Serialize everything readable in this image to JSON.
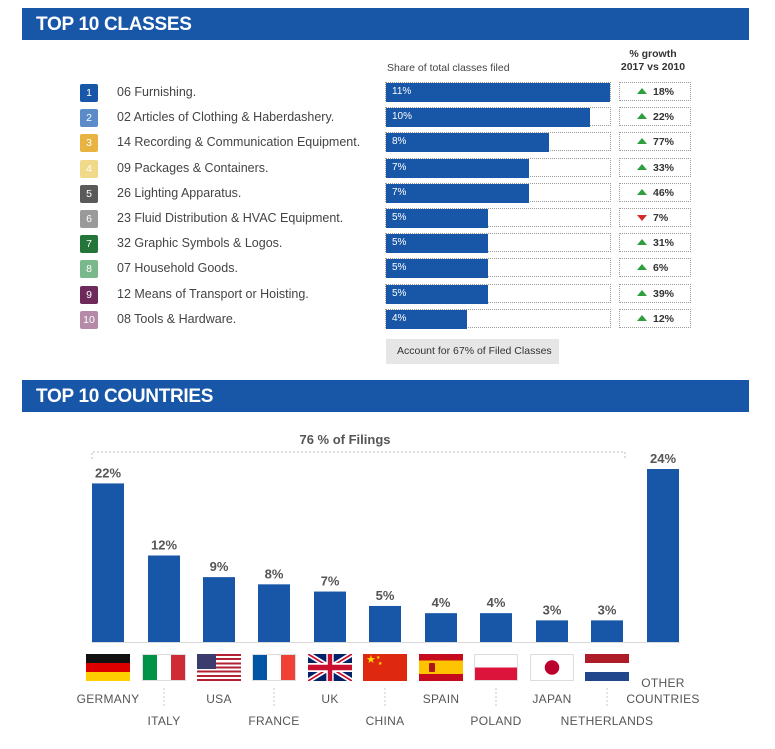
{
  "classes_section": {
    "title": "TOP 10 CLASSES",
    "share_header": "Share of total classes filed",
    "growth_header_line1": "% growth",
    "growth_header_line2": "2017 vs 2010",
    "note": "Account for 67% of Filed Classes",
    "rows": [
      {
        "num": "1",
        "name": "06 Furnishing.",
        "share": 11,
        "share_label": "11%",
        "growth": "18%",
        "direction": "up",
        "badge_color": "#1856a8"
      },
      {
        "num": "2",
        "name": "02 Articles of Clothing & Haberdashery.",
        "share": 10,
        "share_label": "10%",
        "growth": "22%",
        "direction": "up",
        "badge_color": "#5b8cc9"
      },
      {
        "num": "3",
        "name": "14 Recording & Communication Equipment.",
        "share": 8,
        "share_label": "8%",
        "growth": "77%",
        "direction": "up",
        "badge_color": "#e8b341"
      },
      {
        "num": "4",
        "name": "09 Packages & Containers.",
        "share": 7,
        "share_label": "7%",
        "growth": "33%",
        "direction": "up",
        "badge_color": "#f1d98a"
      },
      {
        "num": "5",
        "name": "26 Lighting Apparatus.",
        "share": 7,
        "share_label": "7%",
        "growth": "46%",
        "direction": "up",
        "badge_color": "#5a5a5a"
      },
      {
        "num": "6",
        "name": "23 Fluid Distribution & HVAC Equipment.",
        "share": 5,
        "share_label": "5%",
        "growth": "7%",
        "direction": "down",
        "badge_color": "#9a9a9a"
      },
      {
        "num": "7",
        "name": "32 Graphic Symbols & Logos.",
        "share": 5,
        "share_label": "5%",
        "growth": "31%",
        "direction": "up",
        "badge_color": "#23753a"
      },
      {
        "num": "8",
        "name": "07 Household Goods.",
        "share": 5,
        "share_label": "5%",
        "growth": "6%",
        "direction": "up",
        "badge_color": "#79b88a"
      },
      {
        "num": "9",
        "name": "12 Means of Transport or Hoisting.",
        "share": 5,
        "share_label": "5%",
        "growth": "39%",
        "direction": "up",
        "badge_color": "#6e2a5a"
      },
      {
        "num": "10",
        "name": "08 Tools & Hardware.",
        "share": 4,
        "share_label": "4%",
        "growth": "12%",
        "direction": "up",
        "badge_color": "#b58aa9"
      }
    ]
  },
  "countries_section": {
    "title": "TOP 10 COUNTRIES",
    "bracket_label": "76 % of Filings"
  },
  "colors": {
    "brand_blue": "#1856a8",
    "up_arrow": "#2e9e3f",
    "down_arrow": "#d62a2a"
  },
  "chart_data": [
    {
      "type": "bar",
      "title": "TOP 10 CLASSES",
      "xlabel": "Share of total classes filed",
      "categories": [
        "06 Furnishing.",
        "02 Articles of Clothing & Haberdashery.",
        "14 Recording & Communication Equipment.",
        "09 Packages & Containers.",
        "26 Lighting Apparatus.",
        "23 Fluid Distribution & HVAC Equipment.",
        "32 Graphic Symbols & Logos.",
        "07 Household Goods.",
        "12 Means of Transport or Hoisting.",
        "08 Tools & Hardware."
      ],
      "series": [
        {
          "name": "Share of total classes filed",
          "values": [
            11,
            10,
            8,
            7,
            7,
            5,
            5,
            5,
            5,
            4
          ]
        },
        {
          "name": "% growth 2017 vs 2010",
          "values": [
            18,
            22,
            77,
            33,
            46,
            -7,
            31,
            6,
            39,
            12
          ]
        }
      ]
    },
    {
      "type": "bar",
      "title": "TOP 10 COUNTRIES",
      "categories": [
        "GERMANY",
        "ITALY",
        "USA",
        "FRANCE",
        "UK",
        "CHINA",
        "SPAIN",
        "POLAND",
        "JAPAN",
        "NETHERLANDS",
        "OTHER COUNTRIES"
      ],
      "values": [
        22,
        12,
        9,
        8,
        7,
        5,
        4,
        4,
        3,
        3,
        24
      ],
      "value_labels": [
        "22%",
        "12%",
        "9%",
        "8%",
        "7%",
        "5%",
        "4%",
        "4%",
        "3%",
        "3%",
        "24%"
      ],
      "annotation": "76 % of Filings",
      "flags": [
        "germany-flag-icon",
        "italy-flag-icon",
        "usa-flag-icon",
        "france-flag-icon",
        "uk-flag-icon",
        "china-flag-icon",
        "spain-flag-icon",
        "poland-flag-icon",
        "japan-flag-icon",
        "netherlands-flag-icon",
        null
      ],
      "ylim": [
        0,
        24
      ],
      "grid": false
    }
  ]
}
